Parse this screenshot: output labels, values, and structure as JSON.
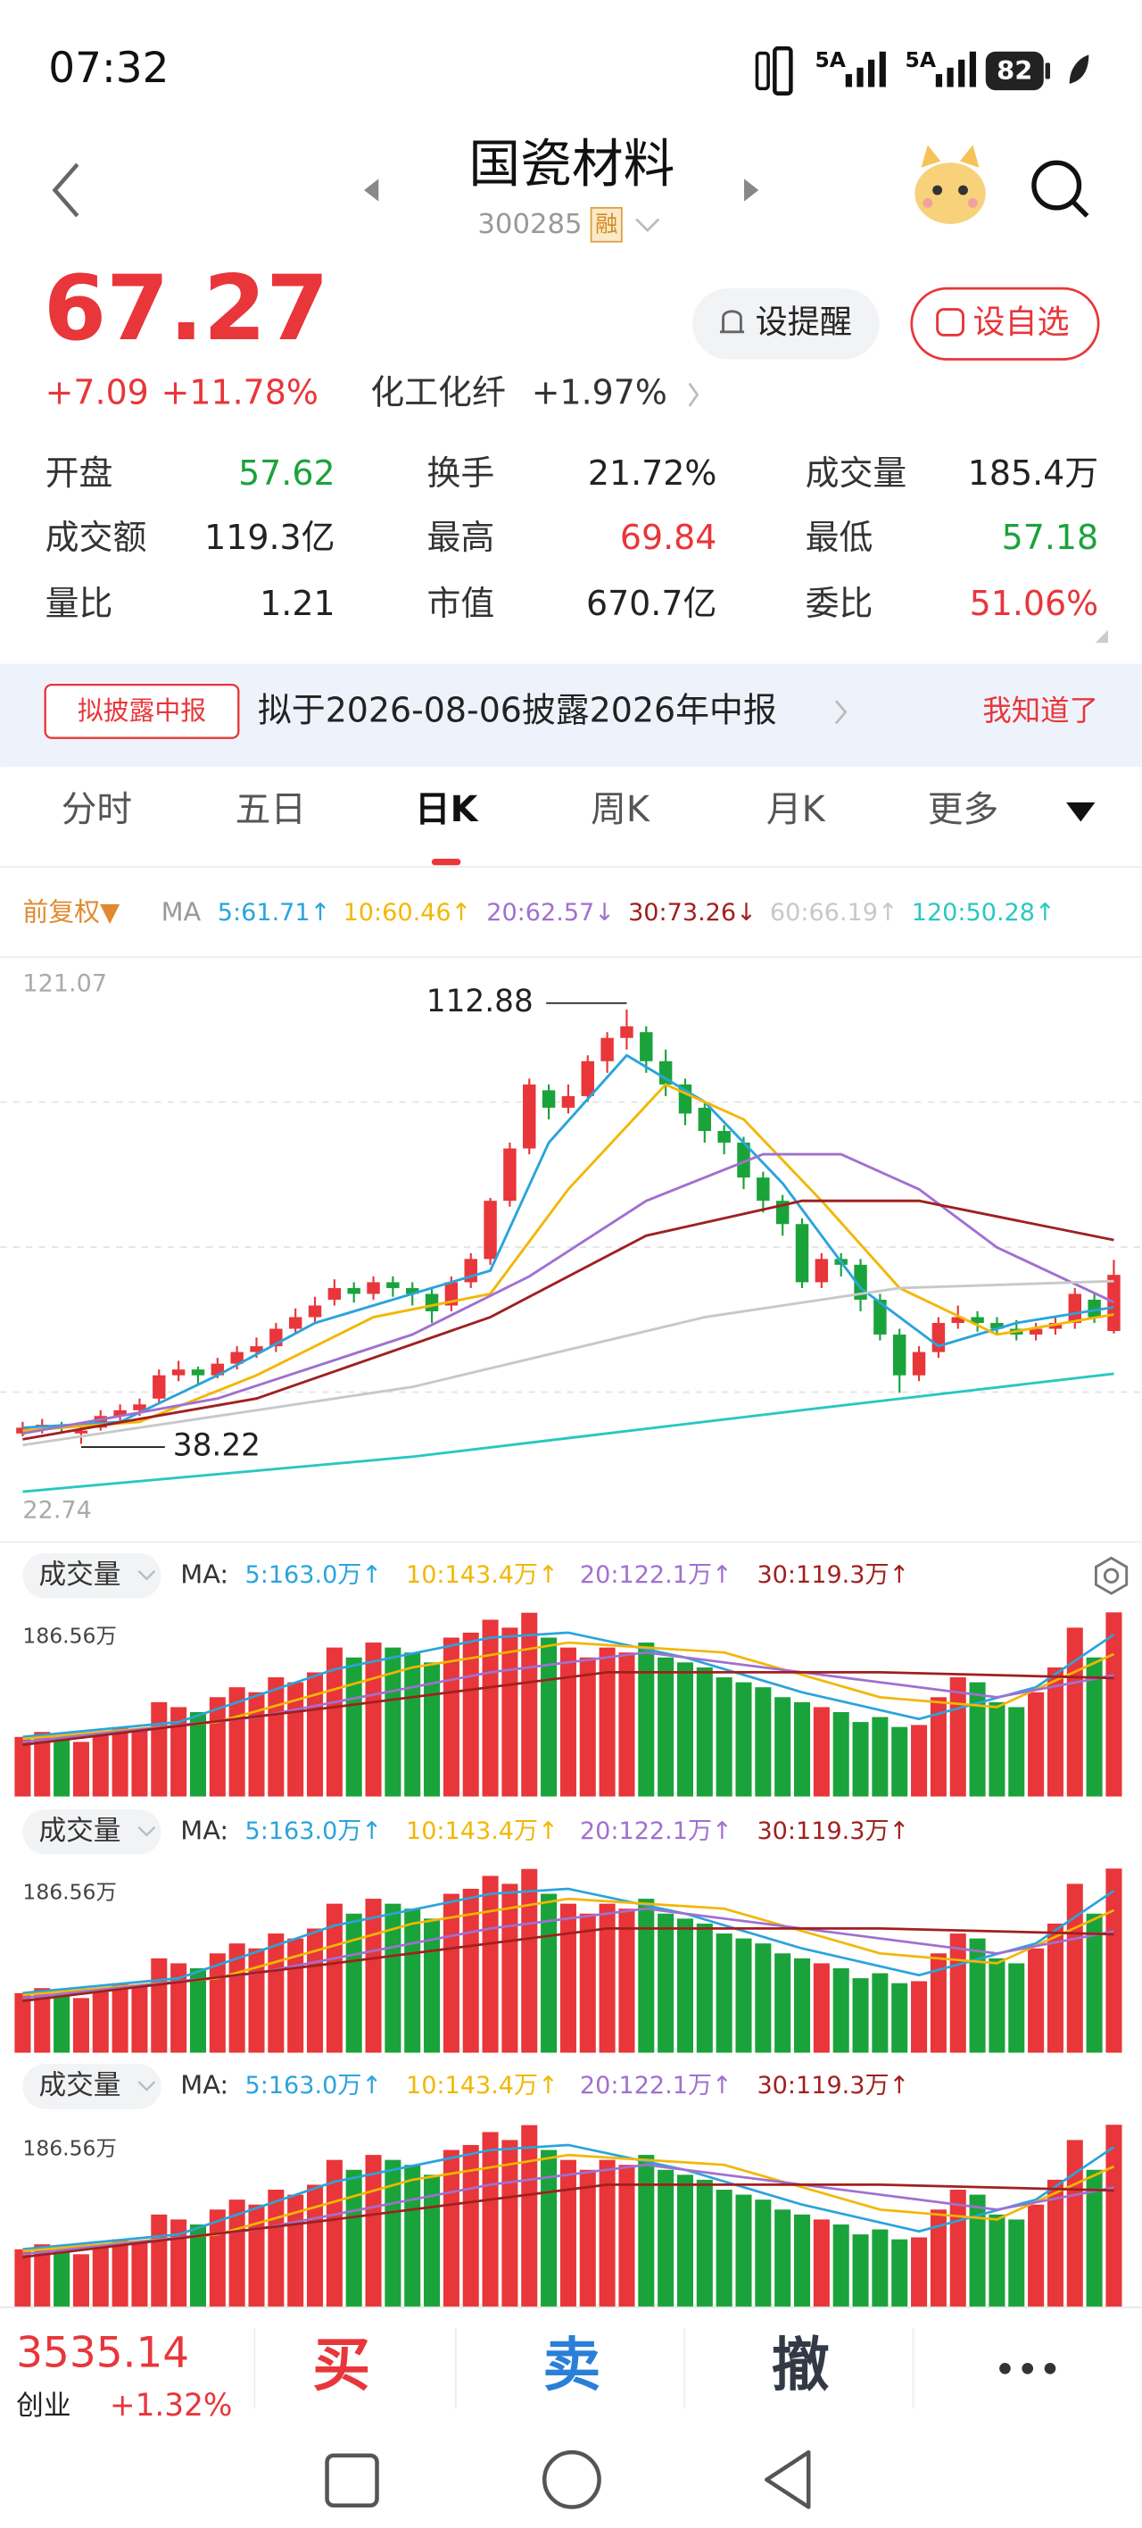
{
  "status_bar": {
    "time": "07:32",
    "signal": [
      "5A",
      "5A"
    ],
    "battery": "82"
  },
  "header": {
    "name": "国瓷材料",
    "code": "300285",
    "badge": "融"
  },
  "quote": {
    "price": "67.27",
    "change": "+7.09",
    "change_pct": "+11.78%",
    "sector": "化工化纤",
    "sector_change": "+1.97%",
    "buttons": [
      "设提醒",
      "设自选"
    ]
  },
  "stats": [
    [
      {
        "label": "开盘",
        "value": "57.62",
        "color": "#1aa33b"
      },
      {
        "label": "换手",
        "value": "21.72%",
        "color": "#222222"
      },
      {
        "label": "成交量",
        "value": "185.4万",
        "color": "#222222"
      }
    ],
    [
      {
        "label": "成交额",
        "value": "119.3亿",
        "color": "#222222"
      },
      {
        "label": "最高",
        "value": "69.84",
        "color": "#e8363a"
      },
      {
        "label": "最低",
        "value": "57.18",
        "color": "#1aa33b"
      }
    ],
    [
      {
        "label": "量比",
        "value": "1.21",
        "color": "#222222"
      },
      {
        "label": "市值",
        "value": "670.7亿",
        "color": "#222222"
      },
      {
        "label": "委比",
        "value": "51.06%",
        "color": "#e8363a"
      }
    ]
  ],
  "notice": {
    "badge": "拟披露中报",
    "text": "拟于2026-08-06披露2026年中报",
    "action": "我知道了"
  },
  "tabs": [
    "分时",
    "五日",
    "日K",
    "周K",
    "月K",
    "更多"
  ],
  "active_tab": 2,
  "chart_data": [
    {
      "type": "candlestick",
      "adjust": "前复权▼",
      "ma_label": "MA",
      "up_color": "#e8363a",
      "down_color": "#1aa33b",
      "ylim": [
        22.74,
        121.07
      ],
      "yticks": [
        22.74,
        121.07
      ],
      "open": [
        40,
        41,
        41.5,
        40,
        41,
        43,
        44,
        46,
        50,
        51,
        50,
        52,
        54,
        55,
        58,
        60,
        63,
        65,
        64,
        66,
        65,
        64,
        62,
        66,
        70,
        80,
        89,
        99,
        96,
        98,
        104,
        108,
        109,
        104,
        100,
        96,
        92,
        90,
        84,
        80,
        76,
        66,
        70,
        69,
        63,
        57,
        50,
        54,
        59,
        60,
        59,
        58,
        57,
        58,
        59,
        63,
        57.62
      ],
      "close": [
        41,
        41.5,
        41,
        40.5,
        43,
        44,
        45,
        50,
        51,
        50,
        52,
        54,
        55,
        58,
        60,
        62,
        65,
        64,
        66,
        65,
        64,
        61,
        66,
        70,
        80,
        89,
        100,
        96,
        98,
        104,
        108,
        110,
        104,
        100,
        95,
        92,
        90,
        84,
        80,
        76,
        66,
        70,
        69,
        63,
        57,
        50,
        54,
        59,
        60,
        59,
        58,
        57,
        58,
        59,
        64,
        60,
        67.27
      ],
      "high": [
        42,
        42.5,
        42,
        41.5,
        44,
        45,
        46,
        51,
        52.5,
        51.5,
        53,
        55,
        56.5,
        59,
        61.5,
        63.5,
        66.5,
        66,
        67,
        67,
        66,
        65,
        67,
        71,
        80.5,
        90,
        101,
        100,
        100,
        105,
        109,
        112.88,
        110,
        106,
        101,
        97,
        93,
        91,
        85,
        81,
        77,
        71,
        71,
        70,
        64,
        58,
        55,
        60,
        62,
        61,
        60,
        59.5,
        59,
        60,
        65,
        64,
        69.84
      ],
      "low": [
        39.5,
        40,
        40,
        38.22,
        40.5,
        42,
        43,
        45,
        49,
        48.5,
        49.5,
        51,
        53,
        54,
        57,
        59,
        62,
        62.5,
        63,
        63.5,
        62,
        59,
        61,
        65,
        69,
        79,
        88,
        94,
        95,
        97,
        102,
        106,
        102,
        98,
        93,
        90,
        88,
        82,
        78,
        74,
        65,
        65,
        67,
        61,
        56,
        47,
        49,
        53,
        58,
        57.5,
        57,
        56,
        56,
        57,
        58,
        59,
        57.18
      ],
      "ma": [
        {
          "name": "5:61.71↑",
          "color": "#2aa4dc",
          "x": [
            0,
            5,
            10,
            15,
            20,
            24,
            27,
            31,
            35,
            39,
            43,
            47,
            51,
            56
          ],
          "values": [
            41,
            42,
            50,
            59,
            64,
            68,
            90,
            105,
            97,
            83,
            65,
            55,
            59,
            61.71
          ]
        },
        {
          "name": "10:60.46↑",
          "color": "#f2b705",
          "x": [
            0,
            6,
            12,
            18,
            24,
            28,
            33,
            37,
            41,
            45,
            50,
            56
          ],
          "values": [
            40.5,
            42,
            50,
            60,
            64,
            82,
            100,
            94,
            80,
            65,
            57,
            60.46
          ]
        },
        {
          "name": "20:62.57↓",
          "color": "#a070d0",
          "x": [
            0,
            10,
            20,
            26,
            32,
            38,
            42,
            46,
            50,
            56
          ],
          "values": [
            40,
            46,
            57,
            67,
            80,
            88,
            88,
            82,
            72,
            62.57
          ]
        },
        {
          "name": "30:73.26↓",
          "color": "#a02020",
          "x": [
            0,
            12,
            24,
            32,
            40,
            46,
            56
          ],
          "values": [
            39,
            46,
            60,
            74,
            80,
            80,
            73.26
          ]
        },
        {
          "name": "60:66.19↑",
          "color": "#c8c8c8",
          "x": [
            0,
            20,
            35,
            45,
            56
          ],
          "values": [
            38,
            48,
            60,
            65,
            66.19
          ]
        },
        {
          "name": "120:50.28↑",
          "color": "#28c8c0",
          "x": [
            0,
            20,
            40,
            56
          ],
          "values": [
            30,
            36,
            44,
            50.28
          ]
        }
      ]
    },
    {
      "type": "bar",
      "label": "成交量",
      "ma_label": "MA:",
      "ylim": [
        0,
        186.56
      ],
      "yticks": [
        {
          "value": 186.56,
          "label": "186.56万"
        }
      ],
      "values": [
        60,
        65,
        58,
        55,
        62,
        70,
        68,
        95,
        90,
        85,
        100,
        110,
        105,
        120,
        115,
        125,
        150,
        140,
        155,
        150,
        145,
        135,
        160,
        165,
        178,
        170,
        185,
        160,
        150,
        140,
        150,
        145,
        155,
        140,
        135,
        130,
        120,
        115,
        110,
        100,
        95,
        90,
        85,
        75,
        80,
        70,
        72,
        100,
        120,
        115,
        95,
        90,
        105,
        130,
        170,
        140,
        185.4
      ],
      "ma": [
        {
          "name": "5:163.0万↑",
          "color": "#2aa4dc",
          "x": [
            0,
            8,
            16,
            24,
            28,
            34,
            40,
            46,
            52,
            56
          ],
          "values": [
            60,
            75,
            128,
            160,
            165,
            140,
            105,
            78,
            110,
            163.0
          ]
        },
        {
          "name": "10:143.4万↑",
          "color": "#f2b705",
          "x": [
            0,
            10,
            20,
            28,
            36,
            44,
            50,
            56
          ],
          "values": [
            58,
            75,
            130,
            155,
            145,
            100,
            90,
            143.4
          ]
        },
        {
          "name": "20:122.1万↑",
          "color": "#a070d0",
          "x": [
            0,
            12,
            24,
            32,
            42,
            50,
            56
          ],
          "values": [
            55,
            80,
            125,
            145,
            120,
            100,
            122.1
          ]
        },
        {
          "name": "30:119.3万↑",
          "color": "#a02020",
          "x": [
            0,
            16,
            30,
            44,
            56
          ],
          "values": [
            52,
            90,
            125,
            125,
            119.3
          ]
        }
      ]
    }
  ],
  "index_bar": {
    "value": "3535.14",
    "name": "创业",
    "change": "+1.32%"
  },
  "actions": [
    {
      "label": "买",
      "color": "#e8363a"
    },
    {
      "label": "卖",
      "color": "#2a7fd8"
    },
    {
      "label": "撤",
      "color": "#333a45"
    }
  ]
}
